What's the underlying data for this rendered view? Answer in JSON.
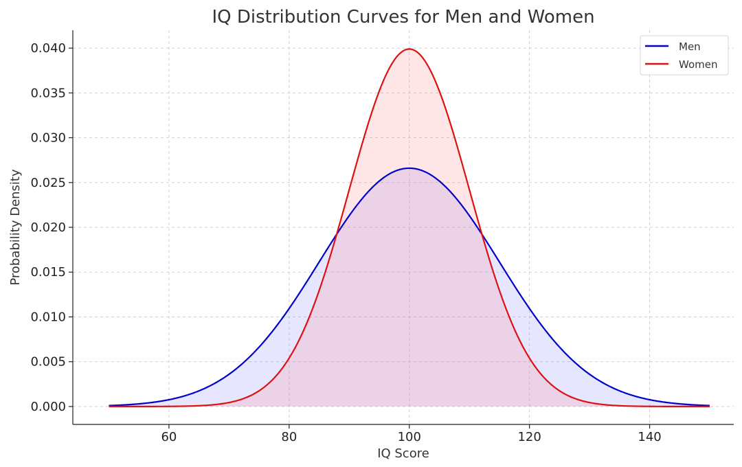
{
  "chart_data": {
    "type": "line",
    "title": "IQ Distribution Curves for Men and Women",
    "xlabel": "IQ Score",
    "ylabel": "Probability Density",
    "xlim": [
      44,
      154
    ],
    "ylim": [
      -0.002,
      0.042
    ],
    "x_ticks": [
      60,
      80,
      100,
      120,
      140
    ],
    "x_tick_labels": [
      "60",
      "80",
      "100",
      "120",
      "140"
    ],
    "y_ticks": [
      0.0,
      0.005,
      0.01,
      0.015,
      0.02,
      0.025,
      0.03,
      0.035,
      0.04
    ],
    "y_tick_labels": [
      "0.000",
      "0.005",
      "0.010",
      "0.015",
      "0.020",
      "0.025",
      "0.030",
      "0.035",
      "0.040"
    ],
    "grid": true,
    "legend_position": "top-right",
    "x_domain": [
      50,
      150
    ],
    "series": [
      {
        "name": "Men",
        "color": "#0000cc",
        "fill": "#8080ff",
        "distribution": "normal",
        "mean": 100,
        "sd": 15,
        "peak": 0.0266
      },
      {
        "name": "Women",
        "color": "#dd1111",
        "fill": "#ff8080",
        "distribution": "normal",
        "mean": 100,
        "sd": 10,
        "peak": 0.0399
      }
    ],
    "fill_opacity": 0.2
  }
}
